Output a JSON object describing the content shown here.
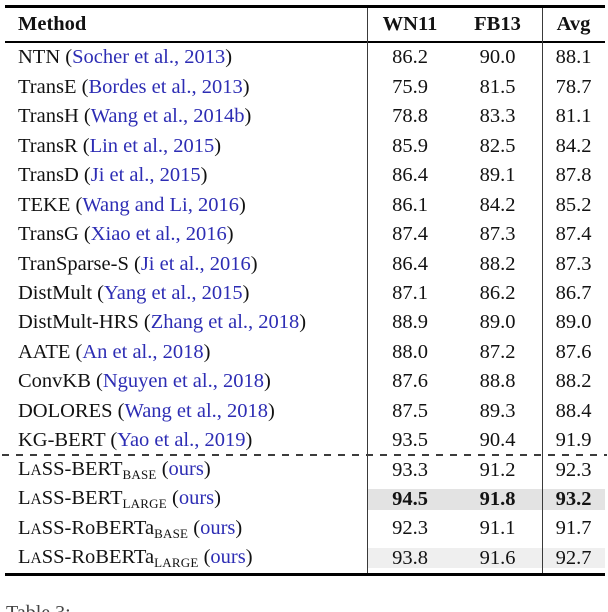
{
  "colors": {
    "citation_blue": "#2d2db4",
    "highlight_dark": "#e3e3e3",
    "highlight_light": "#efefef"
  },
  "table": {
    "headers": {
      "method": "Method",
      "wn11": "WN11",
      "fb13": "FB13",
      "avg": "Avg"
    },
    "caption_fragment": "Table 3:",
    "rows": [
      {
        "runs": [
          {
            "t": "NTN"
          }
        ],
        "cite": "Socher et al., 2013",
        "wn11": "86.2",
        "fb13": "90.0",
        "avg": "88.1",
        "bold": false,
        "shade": null
      },
      {
        "runs": [
          {
            "t": "TransE"
          }
        ],
        "cite": "Bordes et al., 2013",
        "wn11": "75.9",
        "fb13": "81.5",
        "avg": "78.7",
        "bold": false,
        "shade": null
      },
      {
        "runs": [
          {
            "t": "TransH"
          }
        ],
        "cite": "Wang et al., 2014b",
        "wn11": "78.8",
        "fb13": "83.3",
        "avg": "81.1",
        "bold": false,
        "shade": null
      },
      {
        "runs": [
          {
            "t": "TransR"
          }
        ],
        "cite": "Lin et al., 2015",
        "wn11": "85.9",
        "fb13": "82.5",
        "avg": "84.2",
        "bold": false,
        "shade": null
      },
      {
        "runs": [
          {
            "t": "TransD"
          }
        ],
        "cite": "Ji et al., 2015",
        "wn11": "86.4",
        "fb13": "89.1",
        "avg": "87.8",
        "bold": false,
        "shade": null
      },
      {
        "runs": [
          {
            "t": "TEKE"
          }
        ],
        "cite": "Wang and Li, 2016",
        "wn11": "86.1",
        "fb13": "84.2",
        "avg": "85.2",
        "bold": false,
        "shade": null
      },
      {
        "runs": [
          {
            "t": "TransG"
          }
        ],
        "cite": "Xiao et al., 2016",
        "wn11": "87.4",
        "fb13": "87.3",
        "avg": "87.4",
        "bold": false,
        "shade": null
      },
      {
        "runs": [
          {
            "t": "TranSparse-S"
          }
        ],
        "cite": "Ji et al., 2016",
        "wn11": "86.4",
        "fb13": "88.2",
        "avg": "87.3",
        "bold": false,
        "shade": null
      },
      {
        "runs": [
          {
            "t": "DistMult"
          }
        ],
        "cite": "Yang et al., 2015",
        "wn11": "87.1",
        "fb13": "86.2",
        "avg": "86.7",
        "bold": false,
        "shade": null
      },
      {
        "runs": [
          {
            "t": "DistMult-HRS"
          }
        ],
        "cite": "Zhang et al., 2018",
        "wn11": "88.9",
        "fb13": "89.0",
        "avg": "89.0",
        "bold": false,
        "shade": null
      },
      {
        "runs": [
          {
            "t": "AATE"
          }
        ],
        "cite": "An et al., 2018",
        "wn11": "88.0",
        "fb13": "87.2",
        "avg": "87.6",
        "bold": false,
        "shade": null
      },
      {
        "runs": [
          {
            "t": "ConvKB"
          }
        ],
        "cite": "Nguyen et al., 2018",
        "wn11": "87.6",
        "fb13": "88.8",
        "avg": "88.2",
        "bold": false,
        "shade": null
      },
      {
        "runs": [
          {
            "t": "DOLORES"
          }
        ],
        "cite": "Wang et al., 2018",
        "wn11": "87.5",
        "fb13": "89.3",
        "avg": "88.4",
        "bold": false,
        "shade": null
      },
      {
        "runs": [
          {
            "t": "KG-BERT"
          }
        ],
        "cite": "Yao et al., 2019",
        "wn11": "93.5",
        "fb13": "90.4",
        "avg": "91.9",
        "bold": false,
        "shade": null
      },
      {
        "runs": [
          {
            "t": "L"
          },
          {
            "t": "A",
            "s": "sc"
          },
          {
            "t": "SS-BERT"
          },
          {
            "t": "BASE",
            "s": "sub"
          }
        ],
        "cite": "ours",
        "wn11": "93.3",
        "fb13": "91.2",
        "avg": "92.3",
        "bold": false,
        "shade": null
      },
      {
        "runs": [
          {
            "t": "L"
          },
          {
            "t": "A",
            "s": "sc"
          },
          {
            "t": "SS-BERT"
          },
          {
            "t": "LARGE",
            "s": "sub"
          }
        ],
        "cite": "ours",
        "wn11": "94.5",
        "fb13": "91.8",
        "avg": "93.2",
        "bold": true,
        "shade": "#e3e3e3"
      },
      {
        "runs": [
          {
            "t": "L"
          },
          {
            "t": "A",
            "s": "sc"
          },
          {
            "t": "SS-RoBERTa"
          },
          {
            "t": "BASE",
            "s": "sub"
          }
        ],
        "cite": "ours",
        "wn11": "92.3",
        "fb13": "91.1",
        "avg": "91.7",
        "bold": false,
        "shade": null
      },
      {
        "runs": [
          {
            "t": "L"
          },
          {
            "t": "A",
            "s": "sc"
          },
          {
            "t": "SS-RoBERTa"
          },
          {
            "t": "LARGE",
            "s": "sub"
          }
        ],
        "cite": "ours",
        "wn11": "93.8",
        "fb13": "91.6",
        "avg": "92.7",
        "bold": false,
        "shade": "#efefef"
      }
    ]
  }
}
